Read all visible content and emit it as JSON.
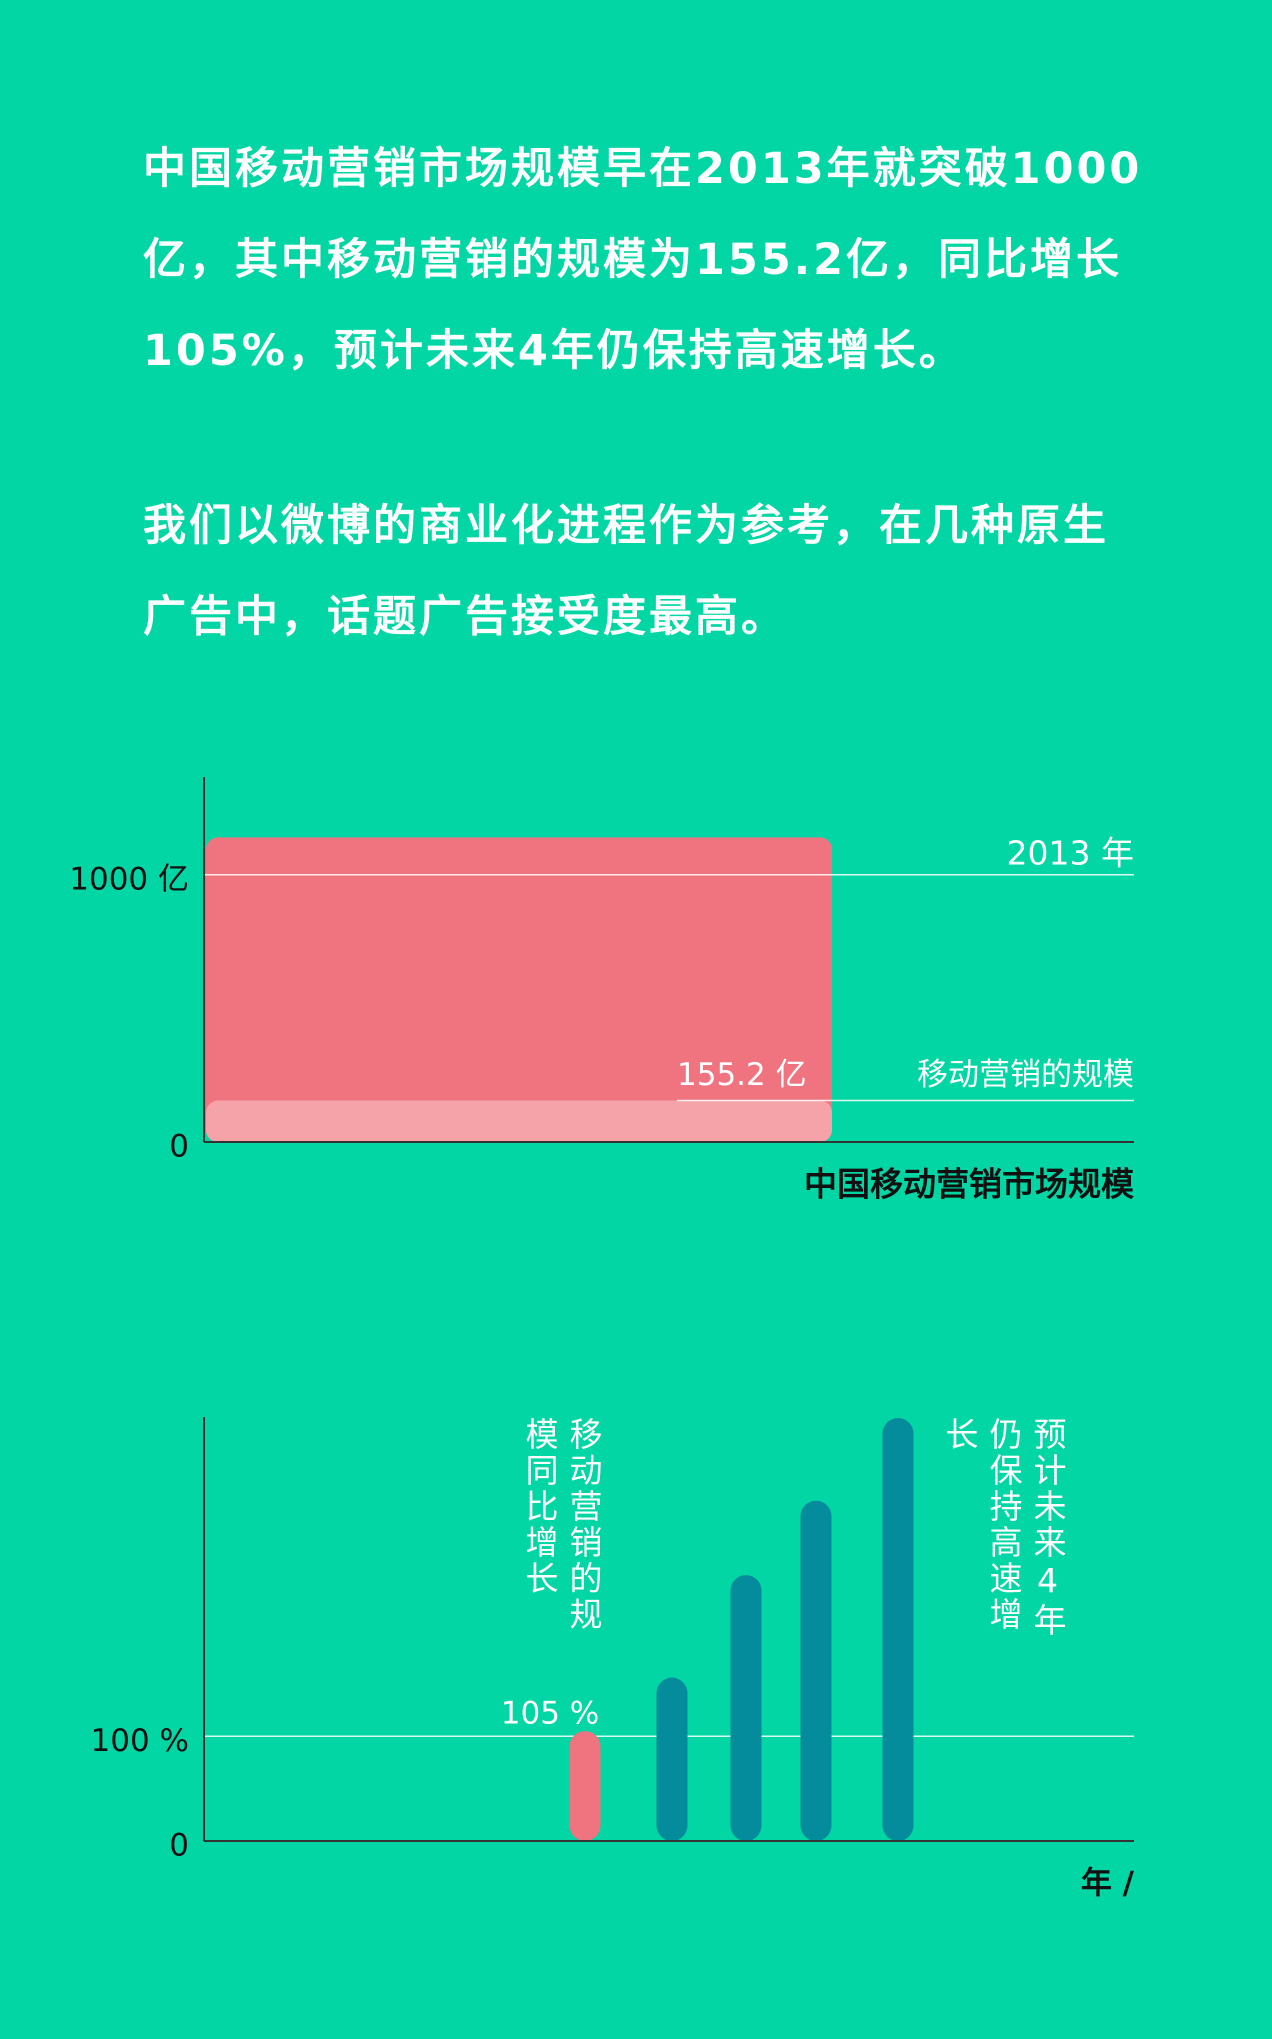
{
  "paragraphs": [
    "中国移动营销市场规模早在2013年就突破1000亿，其中移动营销的规模为155.2亿，同比增长105%，预计未来4年仍保持高速增长。",
    "我们以微博的商业化进程作为参考，在几种原生广告中，话题广告接受度最高。"
  ],
  "chart_data": [
    {
      "type": "overlap_bar",
      "series": [
        {
          "name": "中国移动营销市场规模",
          "color": "#f07480",
          "values": [
            1140
          ]
        },
        {
          "name": "移动营销的规模",
          "color": "#f5a2a8",
          "values": [
            155.2
          ],
          "value_labels": [
            "155.2 亿"
          ]
        }
      ],
      "annotation": "2013 年",
      "ylim": [
        0,
        1366
      ],
      "yticks": [
        0,
        {
          "value": 1000,
          "label": "1000 亿"
        }
      ],
      "grid": true
    },
    {
      "type": "bar",
      "categories": [
        null,
        null,
        null,
        null,
        null
      ],
      "values": [
        105,
        156,
        254,
        325,
        404
      ],
      "value_labels": [
        "105 %",
        null,
        null,
        null,
        null
      ],
      "colors": [
        "#f07480",
        "#058c9c",
        "#058c9c",
        "#058c9c",
        "#058c9c"
      ],
      "annotations": [
        "移动营销的规模同比增长",
        "预计未来4年仍保持高速增长"
      ],
      "xlabel": "年 /",
      "ylim": [
        0,
        405
      ],
      "yticks": [
        0,
        {
          "value": 100,
          "label": "100 %"
        }
      ],
      "grid": true
    }
  ]
}
